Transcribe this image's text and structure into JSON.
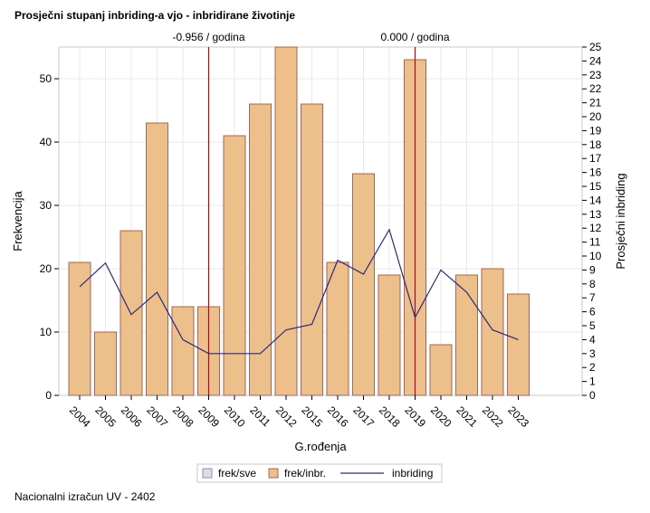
{
  "title": "Prosječni stupanj inbriding-a vjo - inbridirane životinje",
  "footer": "Nacionalni izračun UV - 2402",
  "chart_data": {
    "type": "bar",
    "categories": [
      "2004",
      "2005",
      "2006",
      "2007",
      "2008",
      "2009",
      "2010",
      "2011",
      "2012",
      "2015",
      "2016",
      "2017",
      "2018",
      "2019",
      "2020",
      "2021",
      "2022",
      "2023"
    ],
    "series": [
      {
        "name": "frek/sve",
        "type": "bar",
        "values": [
          0,
          0,
          0,
          0,
          0,
          0,
          0,
          0,
          0,
          0,
          0,
          0,
          0,
          0,
          0,
          0,
          0,
          0
        ]
      },
      {
        "name": "frek/inbr.",
        "type": "bar",
        "values": [
          21,
          10,
          26,
          43,
          14,
          14,
          41,
          46,
          55,
          46,
          21,
          35,
          19,
          53,
          8,
          19,
          20,
          16
        ]
      },
      {
        "name": "inbriding",
        "type": "line",
        "axis": "right",
        "values": [
          7.8,
          9.5,
          5.8,
          7.4,
          4.0,
          3.0,
          3.0,
          3.0,
          4.7,
          5.1,
          9.7,
          8.7,
          11.9,
          5.6,
          9.0,
          7.4,
          4.7,
          4.0
        ]
      }
    ],
    "xlabel": "G.rođenja",
    "ylabel": "Frekvencija",
    "y2label": "Prosječni inbriding",
    "ylim": [
      0,
      55
    ],
    "y2lim": [
      0,
      25
    ],
    "yticks": [
      0,
      10,
      20,
      30,
      40,
      50
    ],
    "y2ticks": [
      0,
      1,
      2,
      3,
      4,
      5,
      6,
      7,
      8,
      9,
      10,
      11,
      12,
      13,
      14,
      15,
      16,
      17,
      18,
      19,
      20,
      21,
      22,
      23,
      24,
      25
    ],
    "reference_lines": [
      {
        "category": "2009",
        "label": "-0.956 / godina"
      },
      {
        "category": "2019",
        "label": "0.000 / godina"
      }
    ],
    "legend": [
      {
        "name": "frek/sve",
        "kind": "bar"
      },
      {
        "name": "frek/inbr.",
        "kind": "bar"
      },
      {
        "name": "inbriding",
        "kind": "line"
      }
    ],
    "legend_position": "bottom",
    "grid": true
  },
  "colors": {
    "bar_fill": "#edbf8a",
    "bar_stroke": "#9b6a5a",
    "line": "#2b2a7a",
    "reference_line": "#8b1a1a",
    "frek_sve_fill": "#dcdcea",
    "grid": "#e8e8e8",
    "frame": "#c9c9c9"
  }
}
